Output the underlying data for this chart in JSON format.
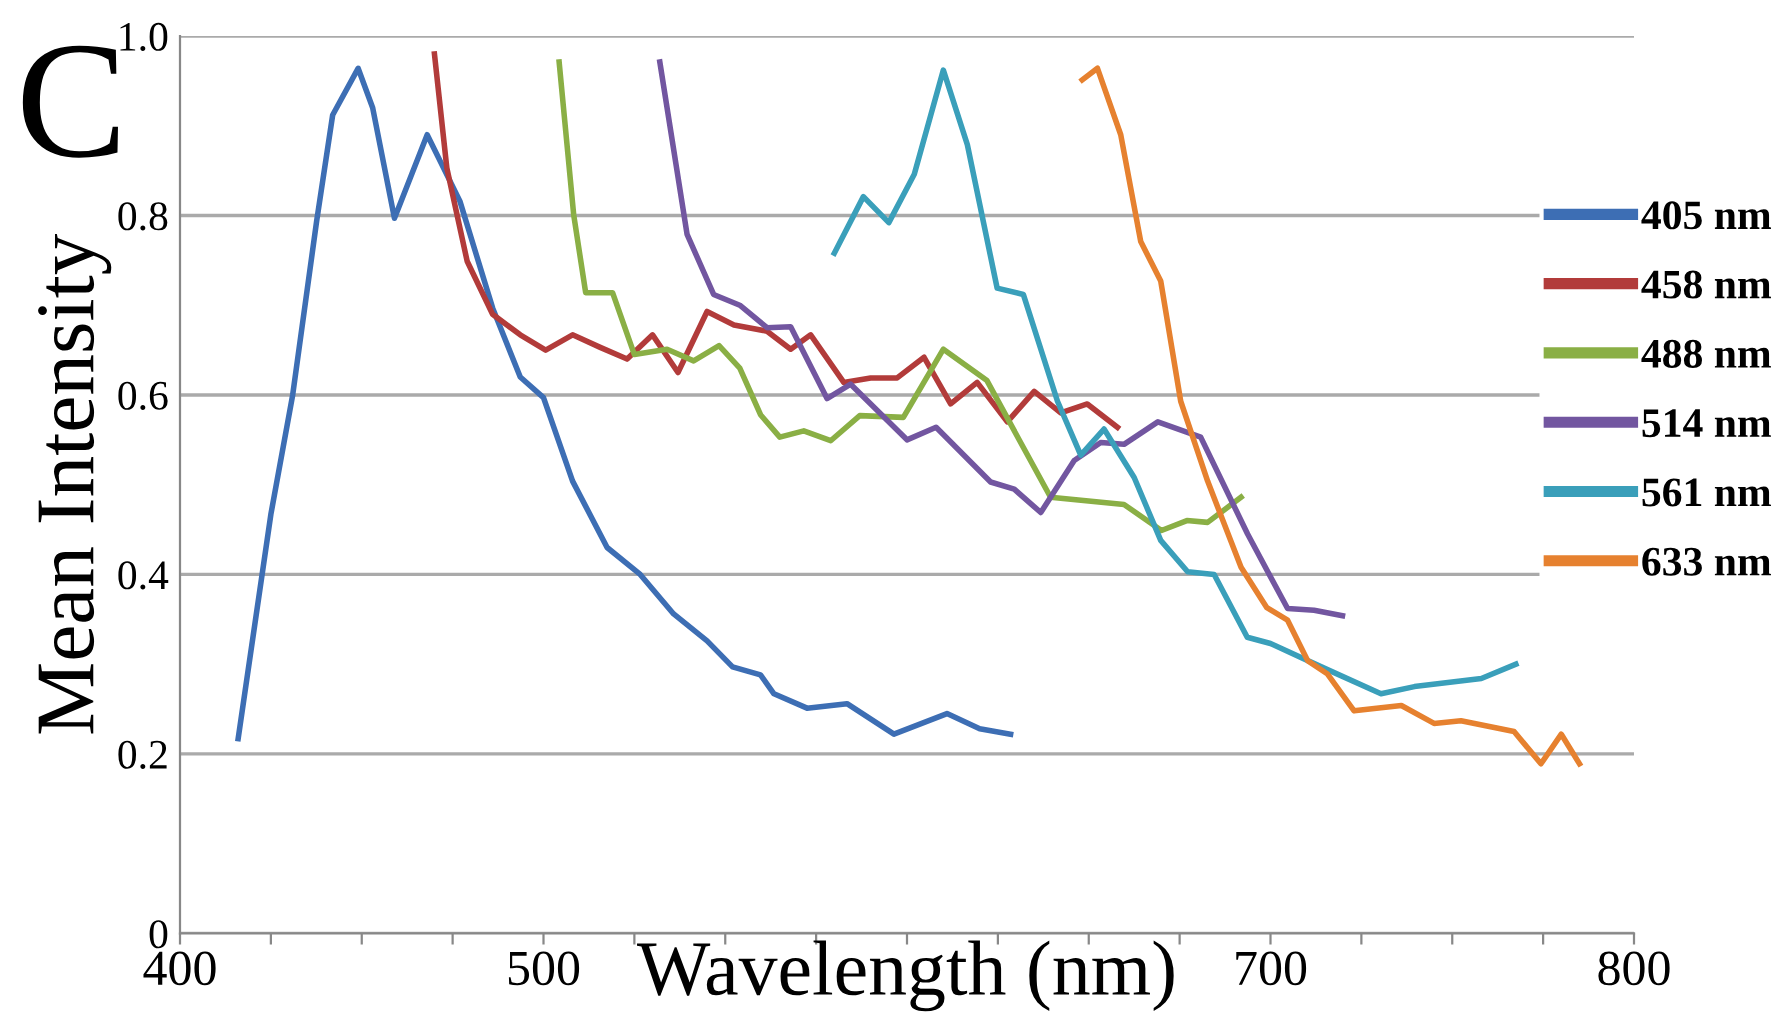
{
  "chart_data": {
    "type": "line",
    "xlabel": "Wavelength (nm)",
    "ylabel": "Mean Intensity",
    "annotations": [
      "C"
    ],
    "xlim": [
      400,
      800
    ],
    "xticks": [
      400,
      {
        "value": 425,
        "label": null
      },
      {
        "value": 450,
        "label": null
      },
      {
        "value": 475,
        "label": null
      },
      500,
      {
        "value": 525,
        "label": null
      },
      {
        "value": 550,
        "label": null
      },
      {
        "value": 575,
        "label": null
      },
      {
        "value": 600,
        "label": null
      },
      {
        "value": 625,
        "label": null
      },
      {
        "value": 650,
        "label": null
      },
      {
        "value": 675,
        "label": null
      },
      700,
      {
        "value": 725,
        "label": null
      },
      {
        "value": 750,
        "label": null
      },
      {
        "value": 775,
        "label": null
      },
      800
    ],
    "ylim": [
      0,
      1.0
    ],
    "yticks": [
      0,
      0.2,
      0.4,
      0.6,
      0.8,
      {
        "value": 1.0,
        "label": "1.0"
      }
    ],
    "grid": "y",
    "legend": "right",
    "marker": "none",
    "line_style": "solid",
    "series": [
      {
        "name": "405 nm",
        "color": "#3d6eb4",
        "x": [
          416,
          425,
          431,
          437.6,
          442,
          449,
          453,
          459,
          468,
          477,
          486,
          493.6,
          500,
          508,
          517.5,
          526.6,
          535.8,
          545,
          552,
          559.7,
          563.4,
          572.5,
          583.5,
          596.4,
          611,
          620,
          628.5
        ],
        "values": [
          0.217,
          0.467,
          0.6,
          0.794,
          0.912,
          0.964,
          0.92,
          0.797,
          0.89,
          0.816,
          0.697,
          0.62,
          0.597,
          0.504,
          0.43,
          0.4,
          0.356,
          0.326,
          0.297,
          0.288,
          0.267,
          0.251,
          0.256,
          0.222,
          0.245,
          0.228,
          0.222
        ]
      },
      {
        "name": "458 nm",
        "color": "#b23b3a",
        "x": [
          470,
          473.4,
          479,
          486,
          493.6,
          500.6,
          508,
          515.6,
          523,
          530,
          537,
          545,
          552.4,
          561.5,
          568,
          573.5,
          582.6,
          590,
          597.3,
          604.7,
          612,
          619.3,
          627.6,
          635,
          642.3,
          649.6,
          657.9
        ],
        "values": [
          0.98,
          0.853,
          0.749,
          0.69,
          0.667,
          0.65,
          0.667,
          0.653,
          0.64,
          0.667,
          0.625,
          0.693,
          0.678,
          0.671,
          0.651,
          0.667,
          0.614,
          0.619,
          0.619,
          0.642,
          0.59,
          0.614,
          0.57,
          0.604,
          0.58,
          0.59,
          0.564
        ]
      },
      {
        "name": "488 nm",
        "color": "#8aaf45",
        "x": [
          504.3,
          508.3,
          511.6,
          519,
          525,
          534,
          541.3,
          548.3,
          554,
          559.7,
          565,
          571.6,
          579,
          587,
          599,
          610,
          622,
          631,
          639.5,
          659.7,
          670,
          677,
          682.7,
          691.9
        ],
        "values": [
          0.971,
          0.801,
          0.714,
          0.714,
          0.645,
          0.651,
          0.638,
          0.655,
          0.63,
          0.578,
          0.553,
          0.56,
          0.549,
          0.577,
          0.575,
          0.651,
          0.616,
          0.549,
          0.486,
          0.478,
          0.449,
          0.46,
          0.458,
          0.486
        ]
      },
      {
        "name": "514 nm",
        "color": "#7256a0",
        "x": [
          532,
          539.5,
          546.8,
          554,
          561.5,
          568,
          578,
          584.5,
          600,
          608,
          623,
          629.5,
          636.8,
          646,
          653.3,
          659.7,
          669,
          680.8,
          693.7,
          704.7,
          712,
          719.8
        ],
        "values": [
          0.971,
          0.779,
          0.712,
          0.7,
          0.675,
          0.676,
          0.596,
          0.612,
          0.55,
          0.564,
          0.503,
          0.495,
          0.469,
          0.527,
          0.547,
          0.545,
          0.57,
          0.553,
          0.445,
          0.362,
          0.36,
          0.354
        ]
      },
      {
        "name": "561 nm",
        "color": "#3a9fba",
        "x": [
          580,
          588,
          595,
          602,
          610,
          616.6,
          624.8,
          632,
          641.4,
          647.8,
          654.2,
          662.5,
          669.8,
          677.2,
          684.5,
          693.6,
          700,
          714,
          730.4,
          739.6,
          758,
          767.5
        ],
        "values": [
          0.758,
          0.821,
          0.792,
          0.846,
          0.962,
          0.879,
          0.719,
          0.712,
          0.593,
          0.533,
          0.562,
          0.508,
          0.438,
          0.403,
          0.4,
          0.33,
          0.323,
          0.297,
          0.267,
          0.275,
          0.284,
          0.3
        ]
      },
      {
        "name": "633 nm",
        "color": "#e6812f",
        "x": [
          648.2,
          652.4,
          658.8,
          664.3,
          669.8,
          675.3,
          682.7,
          691.9,
          699,
          704.7,
          710.2,
          715.7,
          723,
          736,
          745,
          752.4,
          767,
          774.4,
          780,
          785
        ],
        "values": [
          0.951,
          0.964,
          0.89,
          0.771,
          0.727,
          0.593,
          0.504,
          0.408,
          0.363,
          0.349,
          0.304,
          0.289,
          0.248,
          0.254,
          0.234,
          0.237,
          0.225,
          0.189,
          0.222,
          0.189
        ]
      }
    ]
  }
}
